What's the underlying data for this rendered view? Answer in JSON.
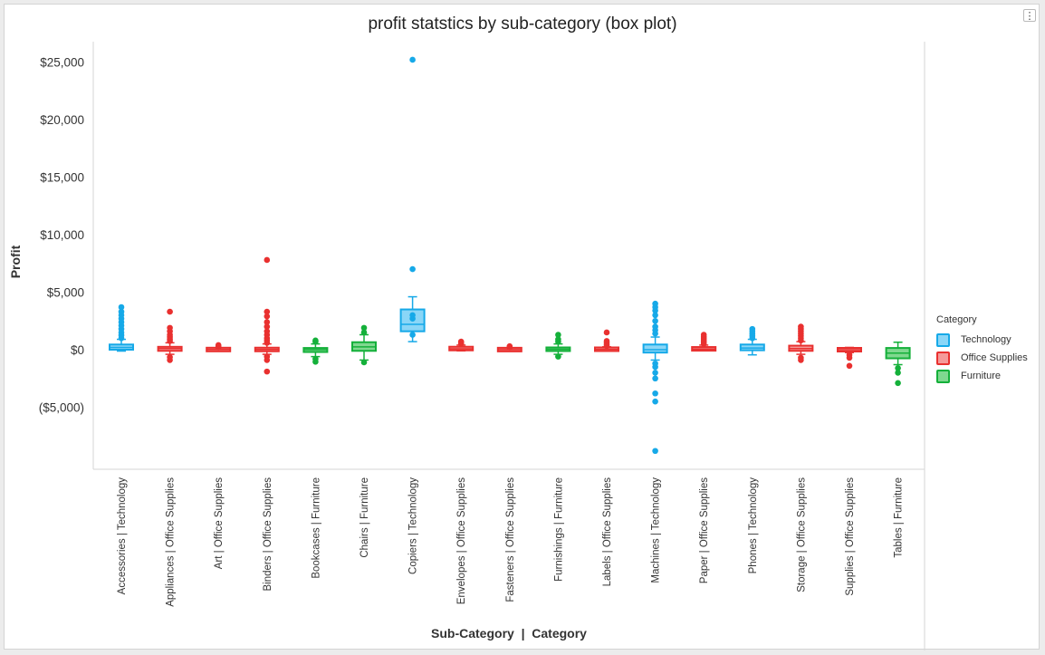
{
  "chart_data": {
    "type": "box",
    "title": "profit statstics by sub-category (box plot)",
    "xlabel": "Sub-Category  |  Category",
    "ylabel": "Profit",
    "ylim": [
      -10500,
      26500
    ],
    "yticks": [
      25000,
      20000,
      15000,
      10000,
      5000,
      0,
      -5000
    ],
    "ytick_labels": [
      "$25,000",
      "$20,000",
      "$15,000",
      "$10,000",
      "$5,000",
      "$0",
      "($5,000)"
    ],
    "legend": {
      "title": "Category",
      "position": "right",
      "items": [
        {
          "name": "Technology",
          "color": "#16a9e8",
          "fill": "#8ad6f7"
        },
        {
          "name": "Office Supplies",
          "color": "#e9302f",
          "fill": "#f59a99"
        },
        {
          "name": "Furniture",
          "color": "#14b03a",
          "fill": "#7fd88f"
        }
      ]
    },
    "boxes": [
      {
        "label": "Accessories | Technology",
        "category": "Technology",
        "q1": 0,
        "median": 200,
        "q3": 450,
        "whisker_low": -120,
        "whisker_high": 900,
        "outliers": [
          1000,
          1250,
          1500,
          1800,
          2100,
          2400,
          2700,
          3000,
          3300,
          3700
        ]
      },
      {
        "label": "Appliances | Office Supplies",
        "category": "Office Supplies",
        "q1": -100,
        "median": 100,
        "q3": 250,
        "whisker_low": -400,
        "whisker_high": 600,
        "outliers": [
          -900,
          -650,
          750,
          900,
          1100,
          1300,
          1600,
          1900,
          3300
        ]
      },
      {
        "label": "Art | Office Supplies",
        "category": "Office Supplies",
        "q1": -20,
        "median": 15,
        "q3": 50,
        "whisker_low": -100,
        "whisker_high": 150,
        "outliers": [
          200,
          280,
          400
        ]
      },
      {
        "label": "Binders | Office Supplies",
        "category": "Office Supplies",
        "q1": -80,
        "median": 20,
        "q3": 120,
        "whisker_low": -400,
        "whisker_high": 500,
        "outliers": [
          -1900,
          -900,
          -600,
          600,
          800,
          1000,
          1300,
          1600,
          2000,
          2400,
          2900,
          3300,
          7800
        ]
      },
      {
        "label": "Bookcases | Furniture",
        "category": "Furniture",
        "q1": -200,
        "median": 0,
        "q3": 150,
        "whisker_low": -600,
        "whisker_high": 500,
        "outliers": [
          -1050,
          -800,
          700,
          800
        ]
      },
      {
        "label": "Chairs | Furniture",
        "category": "Furniture",
        "q1": -100,
        "median": 250,
        "q3": 650,
        "whisker_low": -900,
        "whisker_high": 1300,
        "outliers": [
          -1100,
          1500,
          1900
        ]
      },
      {
        "label": "Copiers | Technology",
        "category": "Technology",
        "q1": 1600,
        "median": 2200,
        "q3": 3500,
        "whisker_low": 700,
        "whisker_high": 4600,
        "outliers": [
          1300,
          2700,
          3000,
          7000,
          25200
        ]
      },
      {
        "label": "Envelopes | Office Supplies",
        "category": "Office Supplies",
        "q1": 0,
        "median": 80,
        "q3": 200,
        "whisker_low": -100,
        "whisker_high": 400,
        "outliers": [
          500,
          600,
          700
        ]
      },
      {
        "label": "Fasteners | Office Supplies",
        "category": "Office Supplies",
        "q1": -10,
        "median": 10,
        "q3": 30,
        "whisker_low": -80,
        "whisker_high": 100,
        "outliers": [
          200,
          300
        ]
      },
      {
        "label": "Furnishings | Furniture",
        "category": "Furniture",
        "q1": -40,
        "median": 40,
        "q3": 120,
        "whisker_low": -400,
        "whisker_high": 500,
        "outliers": [
          -600,
          700,
          900,
          1300
        ]
      },
      {
        "label": "Labels | Office Supplies",
        "category": "Office Supplies",
        "q1": 0,
        "median": 25,
        "q3": 80,
        "whisker_low": -50,
        "whisker_high": 250,
        "outliers": [
          300,
          450,
          600,
          750,
          1500
        ]
      },
      {
        "label": "Machines | Technology",
        "category": "Technology",
        "q1": -250,
        "median": 0,
        "q3": 450,
        "whisker_low": -900,
        "whisker_high": 1100,
        "outliers": [
          -8800,
          -4500,
          -3800,
          -2500,
          -2000,
          -1500,
          -1200,
          1400,
          1700,
          2000,
          2500,
          3000,
          3400,
          3700,
          4000
        ]
      },
      {
        "label": "Paper | Office Supplies",
        "category": "Office Supplies",
        "q1": 0,
        "median": 60,
        "q3": 150,
        "whisker_low": -80,
        "whisker_high": 400,
        "outliers": [
          500,
          650,
          800,
          950,
          1100,
          1300
        ]
      },
      {
        "label": "Phones | Technology",
        "category": "Technology",
        "q1": -50,
        "median": 150,
        "q3": 450,
        "whisker_low": -450,
        "whisker_high": 900,
        "outliers": [
          1000,
          1200,
          1400,
          1600,
          1800
        ]
      },
      {
        "label": "Storage | Office Supplies",
        "category": "Office Supplies",
        "q1": -100,
        "median": 100,
        "q3": 350,
        "whisker_low": -400,
        "whisker_high": 700,
        "outliers": [
          -900,
          -700,
          800,
          1000,
          1200,
          1400,
          1600,
          1800,
          2000
        ]
      },
      {
        "label": "Supplies | Office Supplies",
        "category": "Office Supplies",
        "q1": -80,
        "median": 0,
        "q3": 80,
        "whisker_low": -250,
        "whisker_high": 200,
        "outliers": [
          -1400,
          -700,
          -450
        ]
      },
      {
        "label": "Tables | Furniture",
        "category": "Furniture",
        "q1": -750,
        "median": -300,
        "q3": 150,
        "whisker_low": -1300,
        "whisker_high": 650,
        "outliers": [
          -2900,
          -2000,
          -1600
        ]
      }
    ]
  },
  "ui": {
    "menu_icon": "⋮"
  }
}
